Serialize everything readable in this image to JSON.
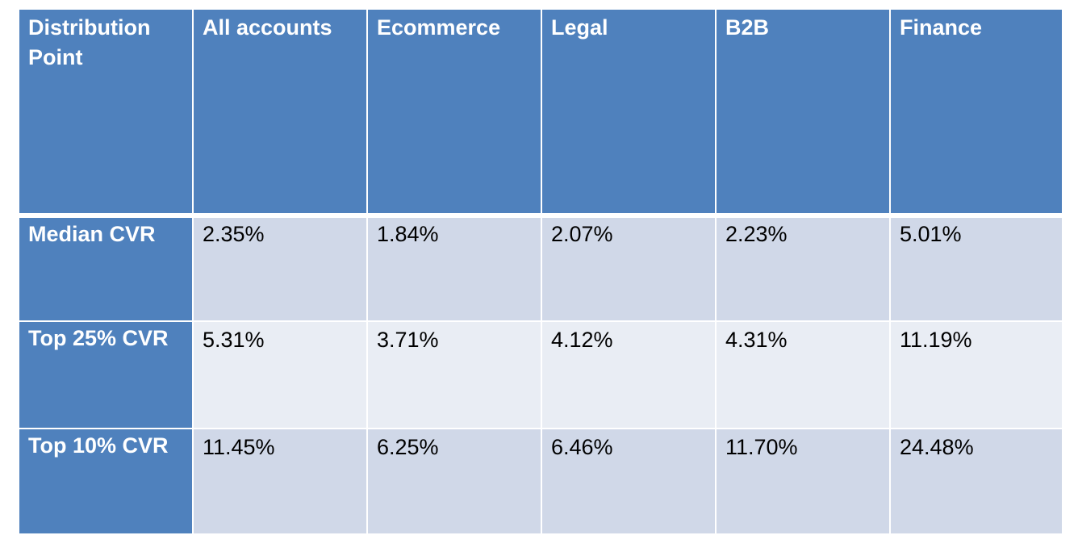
{
  "table": {
    "headers": [
      "Distribution\nPoint",
      "All accounts",
      "Ecommerce",
      "Legal",
      "B2B",
      "Finance"
    ],
    "rows": [
      {
        "label": "Median CVR",
        "values": [
          "2.35%",
          "1.84%",
          "2.07%",
          "2.23%",
          "5.01%"
        ]
      },
      {
        "label": "Top 25% CVR",
        "values": [
          "5.31%",
          "3.71%",
          "4.12%",
          "4.31%",
          "11.19%"
        ]
      },
      {
        "label": "Top 10% CVR",
        "values": [
          "11.45%",
          "6.25%",
          "6.46%",
          "11.70%",
          "24.48%"
        ]
      }
    ]
  },
  "colors": {
    "header_bg": "#4f81bd",
    "band_dark": "#d0d8e8",
    "band_light": "#e9edf4"
  }
}
